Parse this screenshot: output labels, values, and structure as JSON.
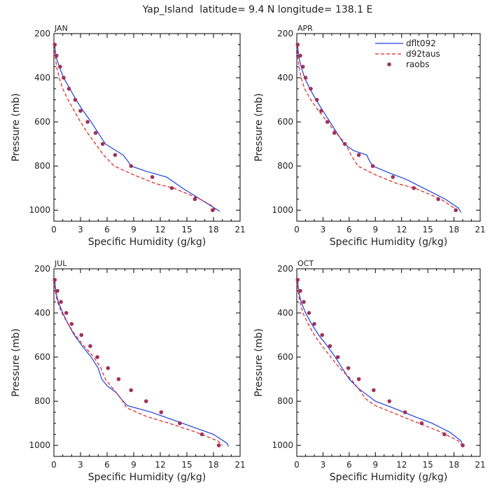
{
  "title": "Yap_Island  latitude= 9.4 N longitude= 138.1 E",
  "colors": {
    "dflt092": "#1f3fe0",
    "d92taus": "#e01e1e",
    "raobs": "#a0325a"
  },
  "legend": {
    "placement": "top-right of APR panel",
    "entries": [
      "dflt092",
      "d92taus",
      "raobs"
    ]
  },
  "chart_data": [
    {
      "type": "line",
      "panel": "JAN",
      "xlabel": "Specific Humidity (g/kg)",
      "ylabel": "Pressure (mb)",
      "xlim": [
        0,
        21
      ],
      "ylim": [
        200,
        1050
      ],
      "y_inverted": true,
      "xticks": [
        0,
        3,
        6,
        9,
        12,
        15,
        18,
        21
      ],
      "yticks": [
        200,
        400,
        600,
        800,
        1000
      ],
      "series": [
        {
          "name": "dflt092",
          "style": "line",
          "points": [
            [
              0.1,
              250
            ],
            [
              0.2,
              300
            ],
            [
              0.6,
              350
            ],
            [
              1.1,
              400
            ],
            [
              1.8,
              450
            ],
            [
              2.5,
              500
            ],
            [
              3.3,
              550
            ],
            [
              4.2,
              600
            ],
            [
              5.0,
              650
            ],
            [
              5.8,
              700
            ],
            [
              7.0,
              730
            ],
            [
              7.8,
              750
            ],
            [
              8.3,
              775
            ],
            [
              8.7,
              800
            ],
            [
              10.5,
              825
            ],
            [
              12.7,
              850
            ],
            [
              14.5,
              900
            ],
            [
              16.5,
              950
            ],
            [
              18.5,
              1000
            ],
            [
              18.7,
              1005
            ]
          ]
        },
        {
          "name": "d92taus",
          "style": "dashed",
          "points": [
            [
              0.05,
              250
            ],
            [
              0.15,
              300
            ],
            [
              0.3,
              350
            ],
            [
              0.6,
              400
            ],
            [
              1.0,
              450
            ],
            [
              1.6,
              500
            ],
            [
              2.3,
              550
            ],
            [
              3.0,
              600
            ],
            [
              3.8,
              650
            ],
            [
              4.7,
              700
            ],
            [
              5.6,
              750
            ],
            [
              6.8,
              800
            ],
            [
              9.0,
              840
            ],
            [
              11.5,
              880
            ],
            [
              13.5,
              900
            ],
            [
              16.5,
              950
            ],
            [
              17.8,
              980
            ],
            [
              18.2,
              1000
            ]
          ]
        },
        {
          "name": "raobs",
          "style": "markers",
          "points": [
            [
              0.1,
              250
            ],
            [
              0.3,
              300
            ],
            [
              0.7,
              350
            ],
            [
              1.1,
              400
            ],
            [
              1.7,
              450
            ],
            [
              2.4,
              500
            ],
            [
              3.0,
              550
            ],
            [
              3.8,
              600
            ],
            [
              4.7,
              650
            ],
            [
              5.5,
              700
            ],
            [
              6.9,
              750
            ],
            [
              8.7,
              800
            ],
            [
              11.1,
              850
            ],
            [
              13.3,
              900
            ],
            [
              15.9,
              950
            ],
            [
              17.9,
              1000
            ]
          ]
        }
      ]
    },
    {
      "type": "line",
      "panel": "APR",
      "xlabel": "Specific Humidity (g/kg)",
      "ylabel": "Pressure (mb)",
      "xlim": [
        0,
        21
      ],
      "ylim": [
        200,
        1050
      ],
      "y_inverted": true,
      "xticks": [
        0,
        3,
        6,
        9,
        12,
        15,
        18,
        21
      ],
      "yticks": [
        200,
        400,
        600,
        800,
        1000
      ],
      "series": [
        {
          "name": "dflt092",
          "style": "line",
          "points": [
            [
              0.1,
              250
            ],
            [
              0.2,
              300
            ],
            [
              0.5,
              350
            ],
            [
              0.9,
              400
            ],
            [
              1.5,
              450
            ],
            [
              2.2,
              500
            ],
            [
              3.0,
              550
            ],
            [
              3.8,
              600
            ],
            [
              4.6,
              650
            ],
            [
              5.4,
              700
            ],
            [
              6.5,
              730
            ],
            [
              8.0,
              750
            ],
            [
              8.3,
              775
            ],
            [
              8.7,
              800
            ],
            [
              10.5,
              830
            ],
            [
              12.5,
              860
            ],
            [
              14.5,
              900
            ],
            [
              17.0,
              950
            ],
            [
              18.5,
              990
            ],
            [
              18.8,
              1010
            ]
          ]
        },
        {
          "name": "d92taus",
          "style": "dashed",
          "points": [
            [
              0.05,
              250
            ],
            [
              0.1,
              300
            ],
            [
              0.25,
              350
            ],
            [
              0.5,
              400
            ],
            [
              0.9,
              450
            ],
            [
              1.6,
              500
            ],
            [
              2.5,
              550
            ],
            [
              3.5,
              600
            ],
            [
              4.5,
              650
            ],
            [
              5.6,
              700
            ],
            [
              6.2,
              750
            ],
            [
              7.0,
              800
            ],
            [
              9.0,
              840
            ],
            [
              11.5,
              880
            ],
            [
              13.5,
              900
            ],
            [
              16.5,
              950
            ],
            [
              18.0,
              990
            ],
            [
              18.4,
              1000
            ]
          ]
        },
        {
          "name": "raobs",
          "style": "markers",
          "points": [
            [
              0.1,
              250
            ],
            [
              0.4,
              300
            ],
            [
              0.7,
              350
            ],
            [
              1.0,
              400
            ],
            [
              1.6,
              450
            ],
            [
              2.3,
              500
            ],
            [
              2.8,
              550
            ],
            [
              3.5,
              600
            ],
            [
              4.3,
              650
            ],
            [
              5.5,
              700
            ],
            [
              7.1,
              750
            ],
            [
              8.7,
              800
            ],
            [
              11.0,
              850
            ],
            [
              13.4,
              900
            ],
            [
              16.2,
              950
            ],
            [
              18.2,
              1000
            ]
          ]
        }
      ]
    },
    {
      "type": "line",
      "panel": "JUL",
      "xlabel": "Specific Humidity (g/kg)",
      "ylabel": "Pressure (mb)",
      "xlim": [
        0,
        21
      ],
      "ylim": [
        200,
        1050
      ],
      "y_inverted": true,
      "xticks": [
        0,
        3,
        6,
        9,
        12,
        15,
        18,
        21
      ],
      "yticks": [
        200,
        400,
        600,
        800,
        1000
      ],
      "series": [
        {
          "name": "dflt092",
          "style": "line",
          "points": [
            [
              0.1,
              250
            ],
            [
              0.2,
              300
            ],
            [
              0.5,
              350
            ],
            [
              1.0,
              400
            ],
            [
              1.6,
              450
            ],
            [
              2.3,
              500
            ],
            [
              3.2,
              550
            ],
            [
              4.2,
              600
            ],
            [
              5.0,
              650
            ],
            [
              5.4,
              700
            ],
            [
              6.0,
              730
            ],
            [
              7.0,
              760
            ],
            [
              7.8,
              800
            ],
            [
              8.3,
              820
            ],
            [
              11.0,
              850
            ],
            [
              14.5,
              900
            ],
            [
              18.0,
              950
            ],
            [
              19.5,
              990
            ],
            [
              19.7,
              1005
            ]
          ]
        },
        {
          "name": "d92taus",
          "style": "dashed",
          "points": [
            [
              0.05,
              250
            ],
            [
              0.15,
              300
            ],
            [
              0.4,
              350
            ],
            [
              0.9,
              400
            ],
            [
              1.6,
              450
            ],
            [
              2.4,
              500
            ],
            [
              3.4,
              550
            ],
            [
              4.5,
              600
            ],
            [
              5.3,
              650
            ],
            [
              5.8,
              700
            ],
            [
              6.8,
              750
            ],
            [
              7.6,
              790
            ],
            [
              8.2,
              830
            ],
            [
              10.5,
              870
            ],
            [
              13.0,
              900
            ],
            [
              16.0,
              940
            ],
            [
              18.5,
              980
            ],
            [
              19.0,
              1000
            ]
          ]
        },
        {
          "name": "raobs",
          "style": "markers",
          "points": [
            [
              0.1,
              250
            ],
            [
              0.4,
              300
            ],
            [
              0.8,
              350
            ],
            [
              1.4,
              400
            ],
            [
              2.0,
              450
            ],
            [
              3.1,
              500
            ],
            [
              4.1,
              550
            ],
            [
              4.9,
              600
            ],
            [
              6.1,
              650
            ],
            [
              7.3,
              700
            ],
            [
              8.7,
              750
            ],
            [
              10.4,
              800
            ],
            [
              12.1,
              850
            ],
            [
              14.2,
              900
            ],
            [
              16.7,
              950
            ],
            [
              18.6,
              1000
            ]
          ]
        }
      ]
    },
    {
      "type": "line",
      "panel": "OCT",
      "xlabel": "Specific Humidity (g/kg)",
      "ylabel": "Pressure (mb)",
      "xlim": [
        0,
        21
      ],
      "ylim": [
        200,
        1050
      ],
      "y_inverted": true,
      "xticks": [
        0,
        3,
        6,
        9,
        12,
        15,
        18,
        21
      ],
      "yticks": [
        200,
        400,
        600,
        800,
        1000
      ],
      "series": [
        {
          "name": "dflt092",
          "style": "line",
          "points": [
            [
              0.1,
              250
            ],
            [
              0.2,
              300
            ],
            [
              0.5,
              350
            ],
            [
              1.0,
              400
            ],
            [
              1.7,
              450
            ],
            [
              2.5,
              500
            ],
            [
              3.5,
              550
            ],
            [
              4.4,
              600
            ],
            [
              5.2,
              650
            ],
            [
              6.0,
              700
            ],
            [
              7.0,
              740
            ],
            [
              8.0,
              770
            ],
            [
              9.0,
              800
            ],
            [
              11.0,
              830
            ],
            [
              13.5,
              870
            ],
            [
              15.5,
              900
            ],
            [
              17.5,
              940
            ],
            [
              18.8,
              980
            ],
            [
              19.0,
              1000
            ]
          ]
        },
        {
          "name": "d92taus",
          "style": "dashed",
          "points": [
            [
              0.05,
              250
            ],
            [
              0.15,
              300
            ],
            [
              0.35,
              350
            ],
            [
              0.7,
              400
            ],
            [
              1.3,
              450
            ],
            [
              2.0,
              500
            ],
            [
              2.9,
              550
            ],
            [
              3.9,
              600
            ],
            [
              4.9,
              650
            ],
            [
              6.2,
              700
            ],
            [
              7.2,
              750
            ],
            [
              7.9,
              790
            ],
            [
              9.0,
              820
            ],
            [
              11.5,
              860
            ],
            [
              14.0,
              900
            ],
            [
              16.5,
              940
            ],
            [
              18.5,
              980
            ],
            [
              18.9,
              1000
            ]
          ]
        },
        {
          "name": "raobs",
          "style": "markers",
          "points": [
            [
              0.1,
              250
            ],
            [
              0.4,
              300
            ],
            [
              0.8,
              350
            ],
            [
              1.4,
              400
            ],
            [
              2.0,
              450
            ],
            [
              2.9,
              500
            ],
            [
              3.8,
              550
            ],
            [
              4.7,
              600
            ],
            [
              5.9,
              650
            ],
            [
              7.1,
              700
            ],
            [
              8.8,
              750
            ],
            [
              10.6,
              800
            ],
            [
              12.4,
              850
            ],
            [
              14.3,
              900
            ],
            [
              16.9,
              950
            ],
            [
              19.0,
              1000
            ]
          ]
        }
      ]
    }
  ]
}
